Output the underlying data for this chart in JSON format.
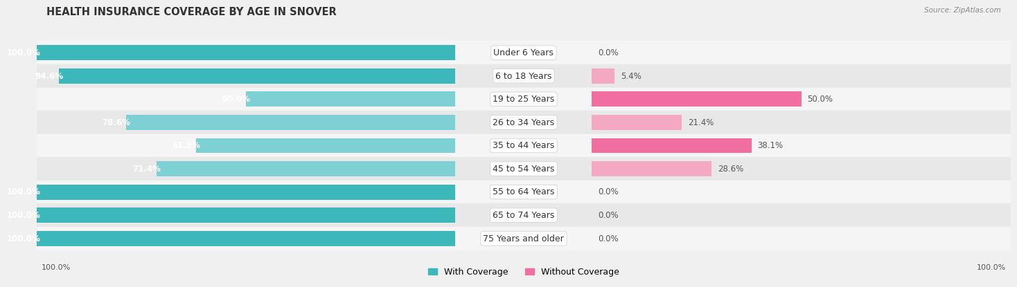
{
  "title": "HEALTH INSURANCE COVERAGE BY AGE IN SNOVER",
  "source": "Source: ZipAtlas.com",
  "categories": [
    "Under 6 Years",
    "6 to 18 Years",
    "19 to 25 Years",
    "26 to 34 Years",
    "35 to 44 Years",
    "45 to 54 Years",
    "55 to 64 Years",
    "65 to 74 Years",
    "75 Years and older"
  ],
  "with_coverage": [
    100.0,
    94.6,
    50.0,
    78.6,
    61.9,
    71.4,
    100.0,
    100.0,
    100.0
  ],
  "without_coverage": [
    0.0,
    5.4,
    50.0,
    21.4,
    38.1,
    28.6,
    0.0,
    0.0,
    0.0
  ],
  "color_with_dark": "#3db8ba",
  "color_with_light": "#7dd0d4",
  "color_without_dark": "#f06fa0",
  "color_without_light": "#f5a8c3",
  "row_bg_dark": "#e8e8e8",
  "row_bg_light": "#f5f5f5",
  "legend_with": "With Coverage",
  "legend_without": "Without Coverage",
  "title_fontsize": 10.5,
  "label_fontsize": 9,
  "value_fontsize": 8.5,
  "tick_fontsize": 8
}
